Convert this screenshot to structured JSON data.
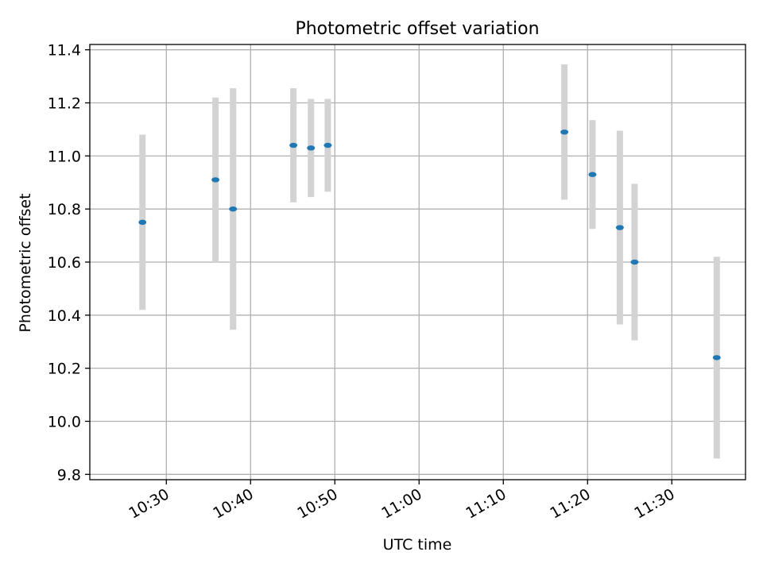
{
  "chart_data": {
    "type": "scatter",
    "title": "Photometric offset variation",
    "xlabel": "UTC time",
    "ylabel": "Photometric offset",
    "x_tick_labels": [
      "10:30",
      "10:40",
      "10:50",
      "11:00",
      "11:10",
      "11:20",
      "11:30"
    ],
    "y_tick_labels": [
      "9.8",
      "10.0",
      "10.2",
      "10.4",
      "10.6",
      "10.8",
      "11.0",
      "11.2",
      "11.4"
    ],
    "xlim": [
      "10:20:55",
      "11:38:45"
    ],
    "ylim": [
      9.78,
      11.42
    ],
    "grid": true,
    "legend": "none",
    "series": [
      {
        "points": [
          {
            "x": "10:27:10",
            "y": 10.75,
            "y_err": 0.33
          },
          {
            "x": "10:35:50",
            "y": 10.91,
            "y_err": 0.31
          },
          {
            "x": "10:37:55",
            "y": 10.8,
            "y_err": 0.455
          },
          {
            "x": "10:45:05",
            "y": 11.04,
            "y_err": 0.215
          },
          {
            "x": "10:47:10",
            "y": 11.03,
            "y_err": 0.185
          },
          {
            "x": "10:49:10",
            "y": 11.04,
            "y_err": 0.175
          },
          {
            "x": "11:17:15",
            "y": 11.09,
            "y_err": 0.255
          },
          {
            "x": "11:20:35",
            "y": 10.93,
            "y_err": 0.205
          },
          {
            "x": "11:23:50",
            "y": 10.73,
            "y_err": 0.365
          },
          {
            "x": "11:25:35",
            "y": 10.6,
            "y_err": 0.295
          },
          {
            "x": "11:35:20",
            "y": 10.24,
            "y_err": 0.38
          }
        ]
      }
    ],
    "colors": {
      "marker": "#1f77b4",
      "errorbar": "#d3d3d3",
      "grid": "#b0b0b0",
      "axes": "#000000"
    }
  }
}
